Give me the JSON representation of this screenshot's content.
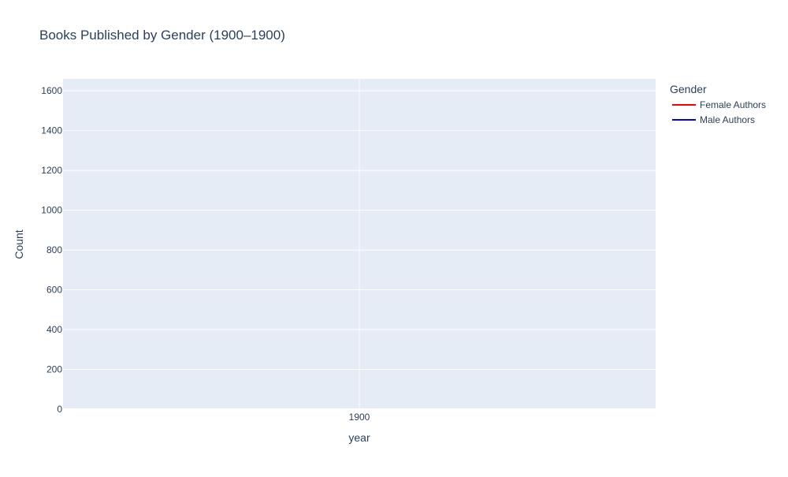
{
  "chart_data": {
    "type": "line",
    "title": "Books Published by Gender (1900–1900)",
    "xlabel": "year",
    "ylabel": "Count",
    "x_ticks": [
      "1900"
    ],
    "y_ticks": [
      0,
      200,
      400,
      600,
      800,
      1000,
      1200,
      1400,
      1600
    ],
    "ylim": [
      0,
      1660
    ],
    "legend": {
      "title": "Gender",
      "position": "right",
      "entries": [
        {
          "name": "Female Authors",
          "color": "#ff0000"
        },
        {
          "name": "Male Authors",
          "color": "#0000ff"
        }
      ]
    },
    "series": [
      {
        "name": "Female Authors",
        "color": "#ff0000",
        "x": [
          1900
        ],
        "y": [
          0
        ]
      },
      {
        "name": "Male Authors",
        "color": "#0000ff",
        "x": [
          1900
        ],
        "y": [
          0
        ]
      }
    ],
    "grid": true,
    "colors": {
      "plot_bg": "#e5ecf6",
      "grid": "#ffffff",
      "text": "#2a3f5f"
    }
  }
}
